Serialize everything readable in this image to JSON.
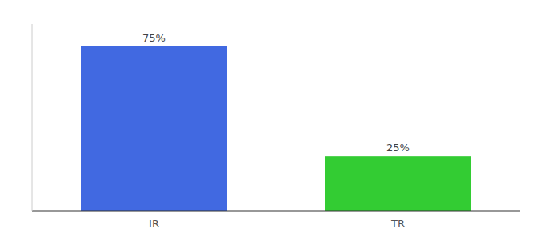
{
  "chart_data": {
    "type": "bar",
    "categories": [
      "IR",
      "TR"
    ],
    "values": [
      75,
      25
    ],
    "value_labels": [
      "75%",
      "25%"
    ],
    "colors": [
      "#4169e1",
      "#33cc33"
    ],
    "ylim": [
      0,
      85
    ],
    "data_labels": true,
    "tick_labels": "x",
    "grid": false
  }
}
